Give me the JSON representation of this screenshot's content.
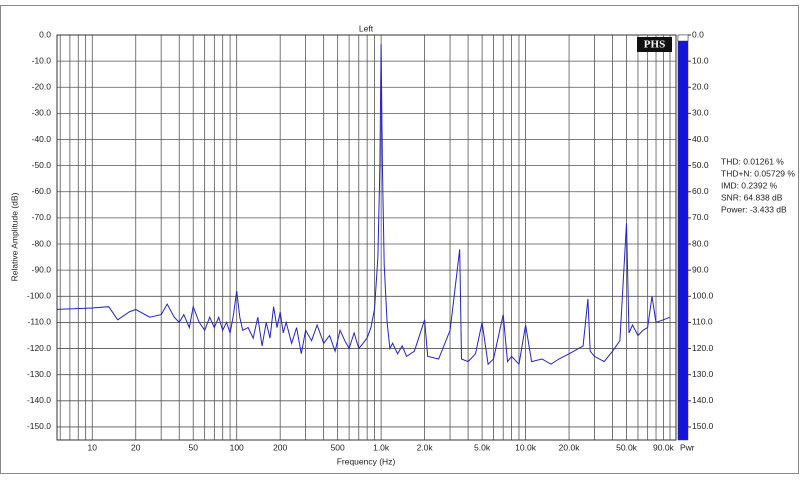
{
  "chart_data": {
    "type": "line",
    "title": "Left",
    "xlabel": "Frequency (Hz)",
    "ylabel": "Relative Amplitude (dB)",
    "logo": "PHS",
    "color": "#2323c8",
    "xlog": true,
    "grid": true,
    "xlim": [
      5.7,
      110000
    ],
    "ylim": [
      -155,
      0
    ],
    "xticks": [
      10,
      20,
      50,
      100,
      200,
      500,
      {
        "value": 1000,
        "label": "1.0k"
      },
      {
        "value": 2000,
        "label": "2.0k"
      },
      {
        "value": 5000,
        "label": "5.0k"
      },
      {
        "value": 10000,
        "label": "10.0k"
      },
      {
        "value": 20000,
        "label": "20.0k"
      },
      {
        "value": 50000,
        "label": "50.0k"
      },
      {
        "value": 90000,
        "label": "90.0k"
      }
    ],
    "xminorticks": [
      6,
      7,
      8,
      9,
      30,
      40,
      60,
      70,
      80,
      90,
      300,
      400,
      600,
      700,
      800,
      900,
      3000,
      4000,
      6000,
      7000,
      8000,
      9000,
      30000,
      40000,
      60000,
      70000,
      80000,
      100000
    ],
    "yticks": [
      {
        "value": 0,
        "label": "0.0"
      },
      {
        "value": -10,
        "label": "-10.0"
      },
      {
        "value": -20,
        "label": "-20.0"
      },
      {
        "value": -30,
        "label": "-30.0"
      },
      {
        "value": -40,
        "label": "-40.0"
      },
      {
        "value": -50,
        "label": "-50.0"
      },
      {
        "value": -60,
        "label": "-60.0"
      },
      {
        "value": -70,
        "label": "-70.0"
      },
      {
        "value": -80,
        "label": "-80.0"
      },
      {
        "value": -90,
        "label": "-90.0"
      },
      {
        "value": -100,
        "label": "-100.0"
      },
      {
        "value": -110,
        "label": "-110.0"
      },
      {
        "value": -120,
        "label": "-120.0"
      },
      {
        "value": -130,
        "label": "-130.0"
      },
      {
        "value": -140,
        "label": "-140.0"
      },
      {
        "value": -150,
        "label": "-150.0"
      }
    ],
    "x": [
      5.7,
      10,
      13,
      15,
      18,
      20,
      25,
      30,
      33,
      37,
      40,
      43,
      47,
      50,
      55,
      60,
      65,
      70,
      75,
      80,
      85,
      90,
      95,
      100,
      105,
      110,
      120,
      130,
      140,
      150,
      160,
      170,
      180,
      190,
      200,
      210,
      220,
      240,
      260,
      280,
      300,
      330,
      360,
      400,
      440,
      480,
      520,
      560,
      600,
      650,
      700,
      750,
      800,
      850,
      900,
      950,
      980,
      1000,
      1020,
      1050,
      1100,
      1150,
      1200,
      1300,
      1400,
      1500,
      1700,
      2000,
      2100,
      2500,
      3000,
      3500,
      3600,
      4000,
      4500,
      5000,
      5500,
      6000,
      7000,
      7500,
      8000,
      9000,
      10000,
      11000,
      13000,
      15000,
      17000,
      20000,
      25000,
      27000,
      28000,
      30000,
      35000,
      40000,
      45000,
      50000,
      52000,
      55000,
      60000,
      65000,
      70000,
      75000,
      80000,
      90000,
      100000
    ],
    "values": [
      -105,
      -104.5,
      -104,
      -109,
      -106,
      -105,
      -108,
      -107,
      -103,
      -108,
      -110,
      -107,
      -112,
      -104,
      -110,
      -113,
      -108,
      -112,
      -108,
      -113,
      -110,
      -114,
      -107,
      -98,
      -108,
      -113,
      -112,
      -116,
      -108,
      -119,
      -110,
      -116,
      -104,
      -112,
      -106,
      -114,
      -110,
      -118,
      -112,
      -122,
      -113,
      -117,
      -111,
      -118,
      -115,
      -121,
      -113,
      -117,
      -120,
      -114,
      -120,
      -118,
      -116,
      -112,
      -105,
      -85,
      -50,
      -3.5,
      -50,
      -88,
      -110,
      -120,
      -118,
      -122,
      -119,
      -123,
      -121,
      -109,
      -123,
      -124,
      -113,
      -82,
      -124,
      -125,
      -122,
      -110,
      -126,
      -124,
      -107,
      -125,
      -123,
      -126,
      -111,
      -125,
      -124,
      -126,
      -124,
      -122,
      -119,
      -101,
      -121,
      -123,
      -125,
      -121,
      -117,
      -72,
      -114,
      -111,
      -115,
      -113,
      -112,
      -100,
      -110,
      -109,
      -108
    ],
    "annotations": [
      "THD: 0.01261 %",
      "THD+N: 0.05729 %",
      "IMD: 0.2392 %",
      "SNR: 64.838 dB",
      "Power: -3.433 dB"
    ],
    "colorbar": {
      "label": "Pwr",
      "color": "#1414dc",
      "clim": [
        0,
        155
      ],
      "ticks": [
        {
          "value": 0,
          "label": "0.0"
        },
        {
          "value": 10,
          "label": "10.0"
        },
        {
          "value": 20,
          "label": "20.0"
        },
        {
          "value": 30,
          "label": "30.0"
        },
        {
          "value": 40,
          "label": "40.0"
        },
        {
          "value": 50,
          "label": "50.0"
        },
        {
          "value": 60,
          "label": "60.0"
        },
        {
          "value": 70,
          "label": "70.0"
        },
        {
          "value": 80,
          "label": "80.0"
        },
        {
          "value": 90,
          "label": "90.0"
        },
        {
          "value": 100,
          "label": "100.0"
        },
        {
          "value": 110,
          "label": "110.0"
        },
        {
          "value": 120,
          "label": "120.0"
        },
        {
          "value": 130,
          "label": "130.0"
        },
        {
          "value": 140,
          "label": "140.0"
        },
        {
          "value": 150,
          "label": "150.0"
        }
      ]
    }
  }
}
